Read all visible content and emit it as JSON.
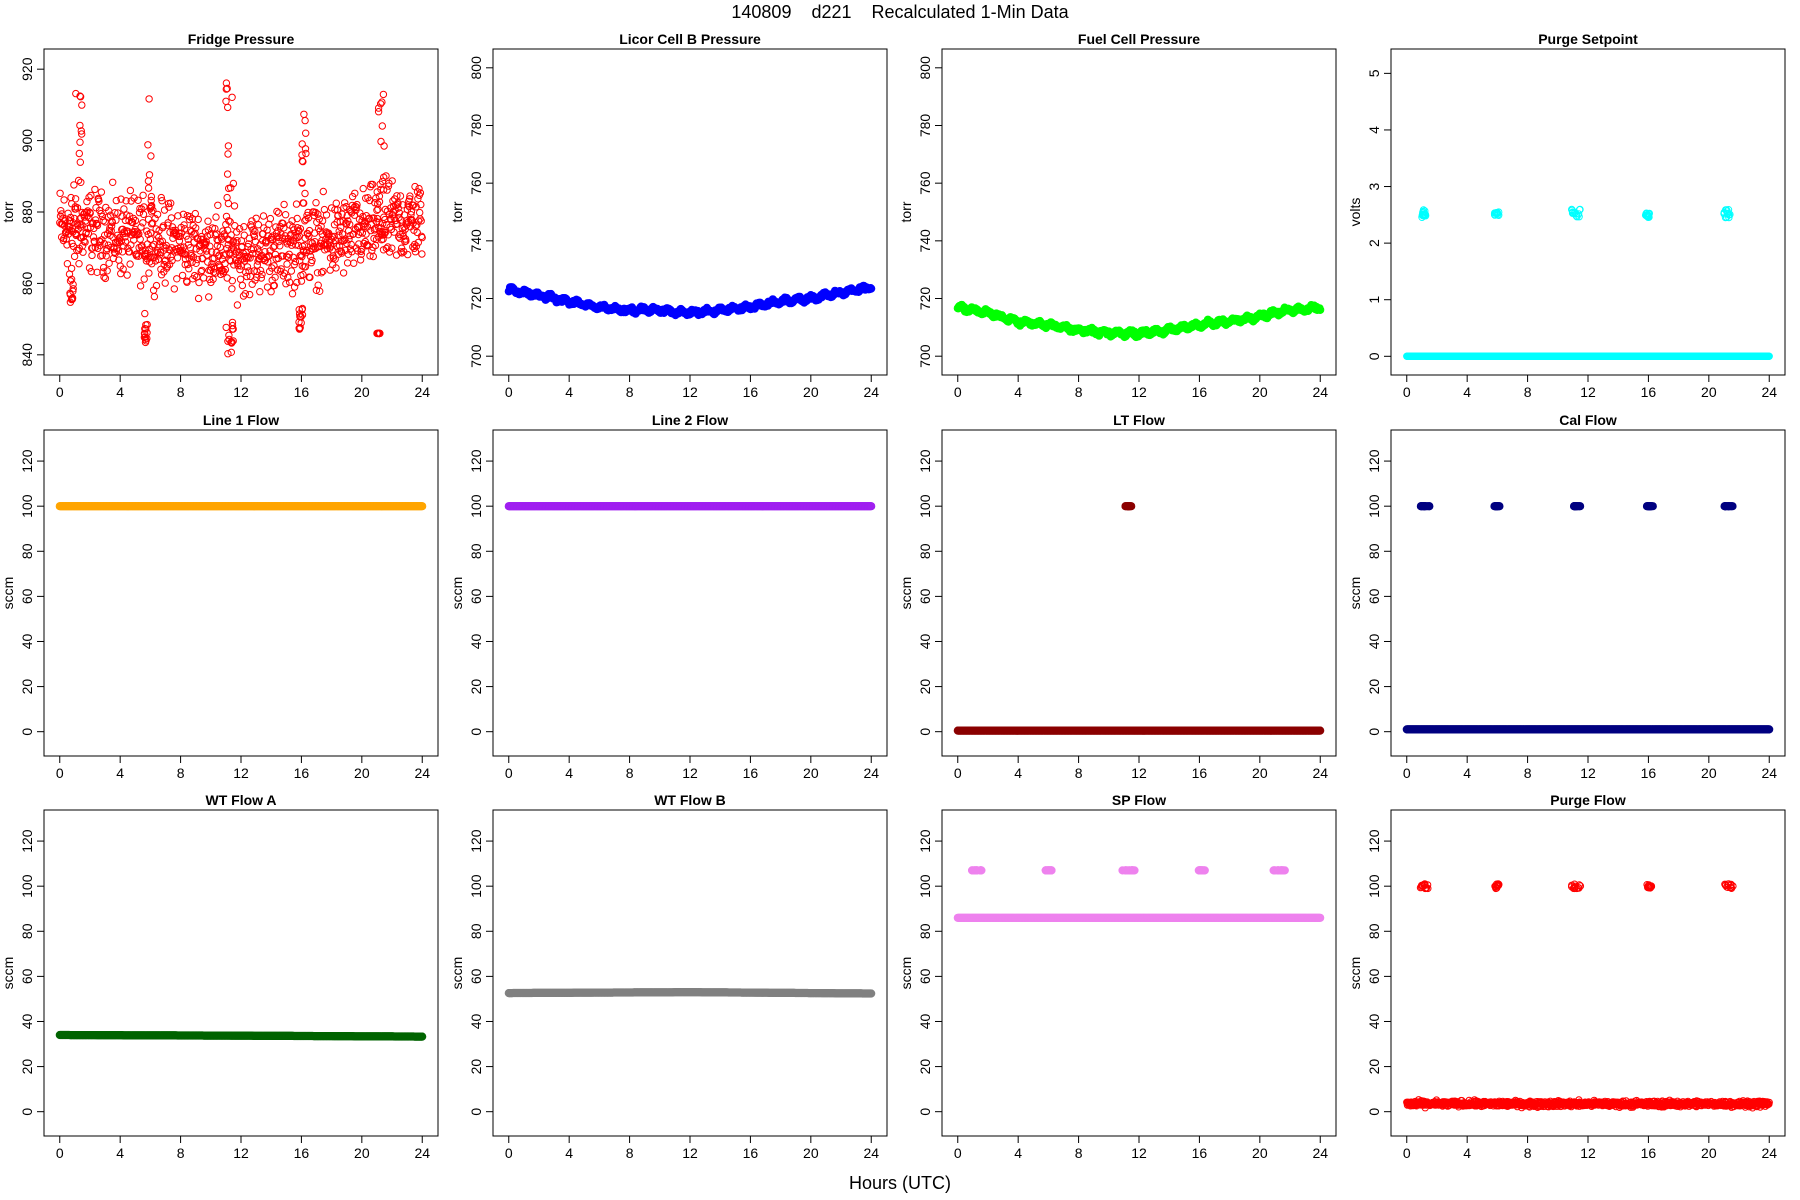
{
  "header": {
    "title": "140809    d221    Recalculated 1-Min Data",
    "xlabel": "Hours (UTC)"
  },
  "chart_data": [
    {
      "type": "scatter",
      "title": "Fridge Pressure",
      "ylabel": "torr",
      "xlim": [
        0,
        24
      ],
      "ylim": [
        838,
        922
      ],
      "yticks": [
        840,
        860,
        880,
        900,
        920
      ],
      "xticks": [
        0,
        4,
        8,
        12,
        16,
        20,
        24
      ],
      "color": "#ff0000",
      "marker": "open-circle",
      "mode": "noise",
      "base": 872,
      "noise": 13,
      "trend": [
        [
          0,
          876
        ],
        [
          6,
          872
        ],
        [
          12,
          868
        ],
        [
          18,
          872
        ],
        [
          21,
          876
        ],
        [
          24,
          878
        ]
      ],
      "spikes": [
        {
          "x": [
            1.0,
            1.5
          ],
          "y": [
            880,
            915
          ]
        },
        {
          "x": [
            5.8,
            6.1
          ],
          "y": [
            880,
            915
          ]
        },
        {
          "x": [
            11.0,
            11.5
          ],
          "y": [
            880,
            920
          ]
        },
        {
          "x": [
            16.0,
            16.3
          ],
          "y": [
            880,
            908
          ]
        },
        {
          "x": [
            21.0,
            21.5
          ],
          "y": [
            880,
            914
          ]
        }
      ],
      "dips": [
        {
          "x": [
            0.6,
            0.9
          ],
          "y": [
            854,
            866
          ]
        },
        {
          "x": [
            5.6,
            5.8
          ],
          "y": [
            843,
            852
          ]
        },
        {
          "x": [
            11.0,
            11.5
          ],
          "y": [
            838,
            852
          ]
        },
        {
          "x": [
            15.8,
            16.1
          ],
          "y": [
            847,
            853
          ]
        },
        {
          "x": [
            21.0,
            21.2
          ],
          "y": [
            846,
            846
          ]
        }
      ]
    },
    {
      "type": "line",
      "title": "Licor Cell B Pressure",
      "ylabel": "torr",
      "xlim": [
        0,
        24
      ],
      "ylim": [
        698,
        802
      ],
      "yticks": [
        700,
        720,
        740,
        760,
        780,
        800
      ],
      "xticks": [
        0,
        4,
        8,
        12,
        16,
        20,
        24
      ],
      "color": "#0000ff",
      "marker": "filled-circle",
      "x": [
        0,
        2,
        4,
        6,
        8,
        10,
        12,
        14,
        16,
        18,
        20,
        22,
        24
      ],
      "y": [
        723,
        721,
        719,
        717,
        716,
        716,
        715,
        716,
        717,
        719,
        720,
        722,
        724
      ]
    },
    {
      "type": "line",
      "title": "Fuel Cell Pressure",
      "ylabel": "torr",
      "xlim": [
        0,
        24
      ],
      "ylim": [
        698,
        802
      ],
      "yticks": [
        700,
        720,
        740,
        760,
        780,
        800
      ],
      "xticks": [
        0,
        4,
        8,
        12,
        16,
        20,
        24
      ],
      "color": "#00ff00",
      "marker": "filled-circle",
      "x": [
        0,
        2,
        4,
        6,
        8,
        10,
        12,
        14,
        16,
        18,
        20,
        22,
        24
      ],
      "y": [
        717,
        715,
        712,
        711,
        709,
        708,
        708,
        709,
        711,
        712,
        714,
        716,
        717
      ]
    },
    {
      "type": "scatter",
      "title": "Purge Setpoint",
      "ylabel": "volts",
      "xlim": [
        0,
        24
      ],
      "ylim": [
        -0.1,
        5.2
      ],
      "yticks": [
        0,
        1,
        2,
        3,
        4,
        5
      ],
      "xticks": [
        0,
        4,
        8,
        12,
        16,
        20,
        24
      ],
      "color": "#00ffff",
      "marker": "open-circle",
      "mode": "constant",
      "base": 0,
      "spikes": [
        {
          "x": [
            1.0,
            1.3
          ],
          "y": [
            2.45,
            2.6
          ]
        },
        {
          "x": [
            5.8,
            6.1
          ],
          "y": [
            2.45,
            2.55
          ]
        },
        {
          "x": [
            10.9,
            11.5
          ],
          "y": [
            2.45,
            2.6
          ]
        },
        {
          "x": [
            15.8,
            16.1
          ],
          "y": [
            2.45,
            2.55
          ]
        },
        {
          "x": [
            21.0,
            21.4
          ],
          "y": [
            2.45,
            2.6
          ]
        }
      ]
    },
    {
      "type": "line",
      "title": "Line 1 Flow",
      "ylabel": "sccm",
      "xlim": [
        0,
        24
      ],
      "ylim": [
        -5,
        128
      ],
      "yticks": [
        0,
        20,
        40,
        60,
        80,
        100,
        120
      ],
      "xticks": [
        0,
        4,
        8,
        12,
        16,
        20,
        24
      ],
      "color": "#ffa500",
      "marker": "filled-circle",
      "x": [
        0,
        24
      ],
      "y": [
        100,
        100
      ]
    },
    {
      "type": "line",
      "title": "Line 2 Flow",
      "ylabel": "sccm",
      "xlim": [
        0,
        24
      ],
      "ylim": [
        -5,
        128
      ],
      "yticks": [
        0,
        20,
        40,
        60,
        80,
        100,
        120
      ],
      "xticks": [
        0,
        4,
        8,
        12,
        16,
        20,
        24
      ],
      "color": "#a020f0",
      "marker": "filled-circle",
      "x": [
        0,
        24
      ],
      "y": [
        100,
        100
      ]
    },
    {
      "type": "scatter",
      "title": "LT Flow",
      "ylabel": "sccm",
      "xlim": [
        0,
        24
      ],
      "ylim": [
        -5,
        128
      ],
      "yticks": [
        0,
        20,
        40,
        60,
        80,
        100,
        120
      ],
      "xticks": [
        0,
        4,
        8,
        12,
        16,
        20,
        24
      ],
      "color": "#8b0000",
      "marker": "filled-circle",
      "mode": "constant",
      "base": 0.5,
      "spikes": [
        {
          "x": [
            11.1,
            11.5
          ],
          "y": [
            100,
            100
          ]
        }
      ]
    },
    {
      "type": "scatter",
      "title": "Cal Flow",
      "ylabel": "sccm",
      "xlim": [
        0,
        24
      ],
      "ylim": [
        -5,
        128
      ],
      "yticks": [
        0,
        20,
        40,
        60,
        80,
        100,
        120
      ],
      "xticks": [
        0,
        4,
        8,
        12,
        16,
        20,
        24
      ],
      "color": "#000080",
      "marker": "filled-circle",
      "mode": "constant",
      "base": 1,
      "spikes": [
        {
          "x": [
            0.9,
            1.5
          ],
          "y": [
            100,
            100
          ]
        },
        {
          "x": [
            5.8,
            6.2
          ],
          "y": [
            100,
            100
          ]
        },
        {
          "x": [
            11.0,
            11.5
          ],
          "y": [
            100,
            100
          ]
        },
        {
          "x": [
            15.9,
            16.3
          ],
          "y": [
            100,
            100
          ]
        },
        {
          "x": [
            21.0,
            21.6
          ],
          "y": [
            100,
            100
          ]
        }
      ]
    },
    {
      "type": "line",
      "title": "WT Flow A",
      "ylabel": "sccm",
      "xlim": [
        0,
        24
      ],
      "ylim": [
        -5,
        128
      ],
      "yticks": [
        0,
        20,
        40,
        60,
        80,
        100,
        120
      ],
      "xticks": [
        0,
        4,
        8,
        12,
        16,
        20,
        24
      ],
      "color": "#006400",
      "marker": "filled-circle",
      "x": [
        0,
        12,
        24
      ],
      "y": [
        34,
        33.7,
        33.3
      ]
    },
    {
      "type": "line",
      "title": "WT Flow B",
      "ylabel": "sccm",
      "xlim": [
        0,
        24
      ],
      "ylim": [
        -5,
        128
      ],
      "yticks": [
        0,
        20,
        40,
        60,
        80,
        100,
        120
      ],
      "xticks": [
        0,
        4,
        8,
        12,
        16,
        20,
        24
      ],
      "color": "#808080",
      "marker": "filled-circle",
      "x": [
        0,
        12,
        24
      ],
      "y": [
        52.6,
        53,
        52.4
      ]
    },
    {
      "type": "scatter",
      "title": "SP Flow",
      "ylabel": "sccm",
      "xlim": [
        0,
        24
      ],
      "ylim": [
        -5,
        128
      ],
      "yticks": [
        0,
        20,
        40,
        60,
        80,
        100,
        120
      ],
      "xticks": [
        0,
        4,
        8,
        12,
        16,
        20,
        24
      ],
      "color": "#ee82ee",
      "marker": "filled-circle",
      "mode": "constant",
      "base": 86,
      "spikes": [
        {
          "x": [
            0.9,
            1.6
          ],
          "y": [
            107,
            107
          ]
        },
        {
          "x": [
            5.8,
            6.3
          ],
          "y": [
            107,
            107
          ]
        },
        {
          "x": [
            10.9,
            11.7
          ],
          "y": [
            107,
            107
          ]
        },
        {
          "x": [
            15.9,
            16.4
          ],
          "y": [
            107,
            107
          ]
        },
        {
          "x": [
            20.9,
            21.7
          ],
          "y": [
            107,
            107
          ]
        }
      ]
    },
    {
      "type": "scatter",
      "title": "Purge Flow",
      "ylabel": "sccm",
      "xlim": [
        0,
        24
      ],
      "ylim": [
        -5,
        128
      ],
      "yticks": [
        0,
        20,
        40,
        60,
        80,
        100,
        120
      ],
      "xticks": [
        0,
        4,
        8,
        12,
        16,
        20,
        24
      ],
      "color": "#ff0000",
      "marker": "open-circle",
      "mode": "noise",
      "base": 3.5,
      "noise": 1.5,
      "spikes": [
        {
          "x": [
            0.9,
            1.4
          ],
          "y": [
            99,
            101
          ]
        },
        {
          "x": [
            5.8,
            6.1
          ],
          "y": [
            99,
            101
          ]
        },
        {
          "x": [
            10.9,
            11.5
          ],
          "y": [
            99,
            101
          ]
        },
        {
          "x": [
            15.9,
            16.2
          ],
          "y": [
            99,
            101
          ]
        },
        {
          "x": [
            20.9,
            21.6
          ],
          "y": [
            99,
            101
          ]
        }
      ]
    }
  ]
}
